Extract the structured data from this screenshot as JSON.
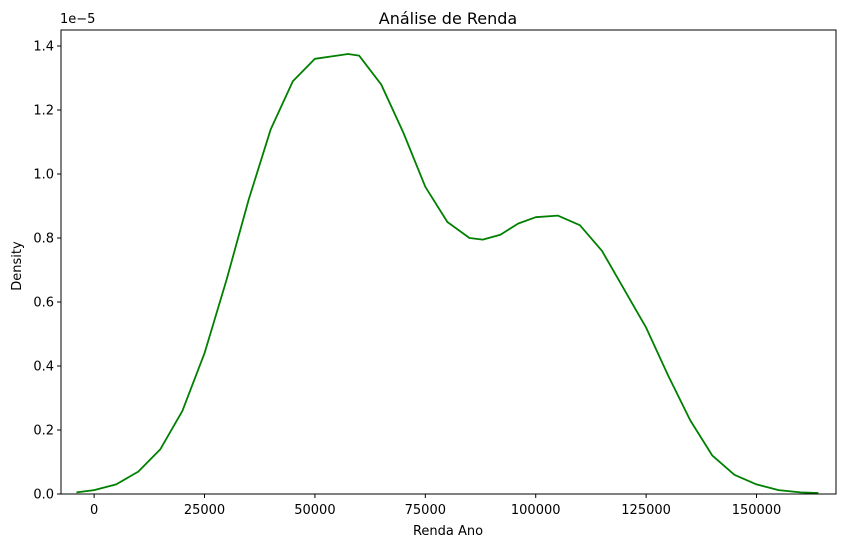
{
  "chart_data": {
    "type": "line",
    "title": "Análise de Renda",
    "xlabel": "Renda Ano",
    "ylabel": "Density",
    "y_offset_label": "1e−5",
    "y_multiplier": 1e-05,
    "xlim": [
      -7500,
      168000
    ],
    "ylim": [
      0,
      1.45
    ],
    "x_ticks": [
      {
        "value": 0,
        "label": "0"
      },
      {
        "value": 25000,
        "label": "25000"
      },
      {
        "value": 50000,
        "label": "50000"
      },
      {
        "value": 75000,
        "label": "75000"
      },
      {
        "value": 100000,
        "label": "100000"
      },
      {
        "value": 125000,
        "label": "125000"
      },
      {
        "value": 150000,
        "label": "150000"
      }
    ],
    "y_ticks": [
      {
        "value": 0.0,
        "label": "0.0"
      },
      {
        "value": 0.2,
        "label": "0.2"
      },
      {
        "value": 0.4,
        "label": "0.4"
      },
      {
        "value": 0.6,
        "label": "0.6"
      },
      {
        "value": 0.8,
        "label": "0.8"
      },
      {
        "value": 1.0,
        "label": "1.0"
      },
      {
        "value": 1.2,
        "label": "1.2"
      },
      {
        "value": 1.4,
        "label": "1.4"
      }
    ],
    "grid": false,
    "legend": "none",
    "series": [
      {
        "color": "#008000",
        "x": [
          -4000,
          0,
          5000,
          10000,
          15000,
          20000,
          25000,
          30000,
          35000,
          40000,
          45000,
          50000,
          55000,
          57500,
          60000,
          65000,
          70000,
          75000,
          80000,
          85000,
          88000,
          92000,
          96000,
          100000,
          105000,
          110000,
          115000,
          120000,
          125000,
          130000,
          135000,
          140000,
          145000,
          150000,
          155000,
          160000,
          164000
        ],
        "y": [
          0.005,
          0.012,
          0.03,
          0.07,
          0.14,
          0.26,
          0.44,
          0.67,
          0.92,
          1.14,
          1.29,
          1.36,
          1.37,
          1.375,
          1.37,
          1.28,
          1.13,
          0.96,
          0.85,
          0.8,
          0.795,
          0.81,
          0.845,
          0.865,
          0.87,
          0.84,
          0.76,
          0.64,
          0.52,
          0.37,
          0.23,
          0.12,
          0.06,
          0.03,
          0.012,
          0.005,
          0.003
        ]
      }
    ]
  }
}
